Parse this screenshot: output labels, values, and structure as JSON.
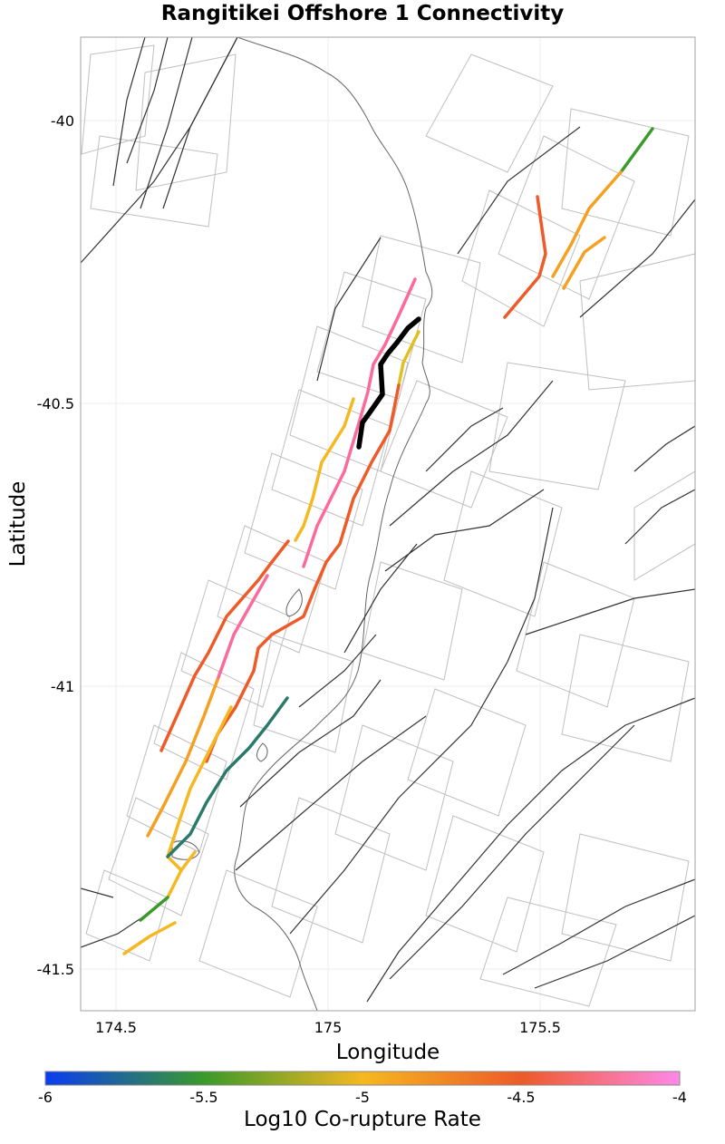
{
  "title": "Rangitikei Offshore 1 Connectivity",
  "axes": {
    "xlabel": "Longitude",
    "ylabel": "Latitude",
    "xticks": [
      "174.5",
      "175",
      "175.5"
    ],
    "yticks": [
      "-40",
      "-40.5",
      "-41",
      "-41.5"
    ]
  },
  "colorbar": {
    "title": "Log10 Co-rupture Rate",
    "ticks": [
      "-6",
      "-5.5",
      "-5",
      "-4.5",
      "-4"
    ],
    "colors": [
      "#0a3cf2",
      "#3a9a2a",
      "#f5b820",
      "#ee5a28",
      "#ff88e8"
    ]
  },
  "styles": {
    "source_color": "#000000",
    "fault_color": "#333333",
    "polygon_color": "#bfbfbf",
    "coast_color": "#666666"
  }
}
